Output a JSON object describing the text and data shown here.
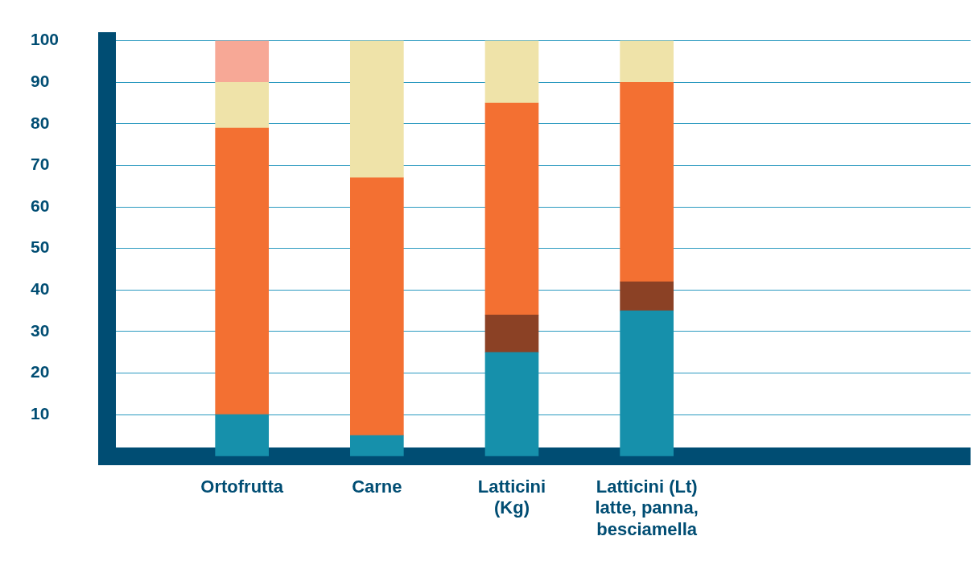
{
  "chart_data": {
    "type": "bar",
    "stacked": true,
    "categories": [
      "Ortofrutta",
      "Carne",
      "Latticini\n(Kg)",
      "Latticini (Lt)\nlatte, panna,\nbesciamella"
    ],
    "series": [
      {
        "color": "#1690ab",
        "values": [
          10,
          5,
          25,
          35
        ]
      },
      {
        "color": "#8b4125",
        "values": [
          null,
          null,
          9,
          7
        ]
      },
      {
        "color": "#f37032",
        "values": [
          69,
          62,
          51,
          48
        ]
      },
      {
        "color": "#efe3a9",
        "values": [
          11,
          33,
          15,
          10
        ]
      },
      {
        "color": "#f7a896",
        "values": [
          10,
          null,
          null,
          null
        ]
      }
    ],
    "ylim": [
      0,
      100
    ],
    "yticks": [
      10,
      20,
      30,
      40,
      50,
      60,
      70,
      80,
      90,
      100
    ],
    "grid": "y",
    "legend": false
  }
}
